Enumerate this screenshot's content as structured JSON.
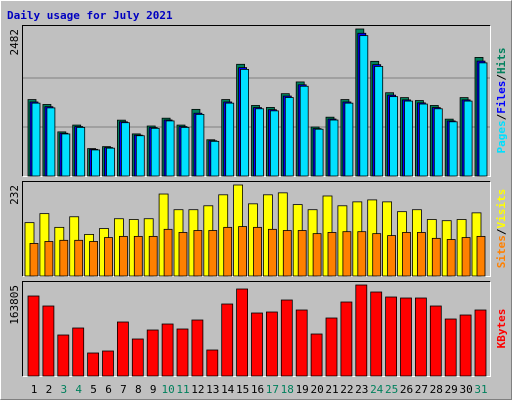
{
  "chart_data": [
    {
      "type": "bar",
      "title": "Daily usage for July 2021",
      "ylim": [
        0,
        2482
      ],
      "yticks": [
        2482
      ],
      "legend_separator": "/",
      "series": [
        {
          "name": "Hits",
          "color": "#00805c",
          "values": [
            1291,
            1208,
            745,
            860,
            463,
            496,
            943,
            711,
            844,
            976,
            860,
            1125,
            612,
            1291,
            1886,
            1191,
            1158,
            1390,
            1588,
            827,
            993,
            1291,
            2482,
            1936,
            1406,
            1324,
            1274,
            1191,
            960,
            1324,
            2002
          ]
        },
        {
          "name": "Files",
          "color": "#0000ff",
          "values": [
            1250,
            1170,
            722,
            835,
            450,
            480,
            915,
            690,
            818,
            946,
            835,
            1060,
            595,
            1250,
            1830,
            1155,
            1120,
            1350,
            1540,
            800,
            962,
            1250,
            2410,
            1880,
            1365,
            1285,
            1235,
            1155,
            930,
            1285,
            1940
          ]
        },
        {
          "name": "Pages",
          "color": "#00e0ff",
          "values": [
            1230,
            1150,
            710,
            820,
            440,
            470,
            900,
            680,
            805,
            930,
            820,
            1040,
            585,
            1230,
            1800,
            1135,
            1100,
            1325,
            1515,
            790,
            945,
            1230,
            2370,
            1850,
            1340,
            1265,
            1215,
            1135,
            915,
            1265,
            1910
          ]
        }
      ]
    },
    {
      "type": "bar",
      "ylim": [
        0,
        232
      ],
      "yticks": [
        232
      ],
      "legend_separator": "/",
      "series": [
        {
          "name": "Visits",
          "color": "#ffff00",
          "values": [
            136,
            159,
            124,
            151,
            106,
            121,
            146,
            144,
            146,
            209,
            169,
            169,
            179,
            207,
            232,
            184,
            207,
            212,
            182,
            169,
            204,
            179,
            189,
            194,
            189,
            164,
            169,
            144,
            141,
            144,
            161
          ]
        },
        {
          "name": "Sites",
          "color": "#ff8000",
          "values": [
            83,
            88,
            91,
            91,
            88,
            98,
            101,
            101,
            101,
            119,
            111,
            116,
            116,
            124,
            126,
            124,
            119,
            116,
            116,
            108,
            111,
            113,
            113,
            108,
            103,
            111,
            111,
            96,
            93,
            98,
            101
          ]
        }
      ]
    },
    {
      "type": "bar",
      "ylim": [
        0,
        163805
      ],
      "yticks": [
        163805
      ],
      "categories": [
        "1",
        "2",
        "3",
        "4",
        "5",
        "6",
        "7",
        "8",
        "9",
        "10",
        "11",
        "12",
        "13",
        "14",
        "15",
        "16",
        "17",
        "18",
        "19",
        "20",
        "21",
        "22",
        "23",
        "24",
        "25",
        "26",
        "27",
        "28",
        "29",
        "30",
        "31"
      ],
      "category_colors": [
        "#000",
        "#000",
        "#00805c",
        "#00805c",
        "#000",
        "#000",
        "#000",
        "#000",
        "#000",
        "#00805c",
        "#00805c",
        "#000",
        "#000",
        "#000",
        "#000",
        "#000",
        "#00805c",
        "#00805c",
        "#000",
        "#000",
        "#000",
        "#000",
        "#000",
        "#00805c",
        "#00805c",
        "#000",
        "#000",
        "#000",
        "#000",
        "#000",
        "#00805c"
      ],
      "series": [
        {
          "name": "KBytes",
          "color": "#ff0000",
          "values": [
            144000,
            126000,
            73800,
            86400,
            41400,
            45000,
            97200,
            66600,
            82800,
            93600,
            84600,
            100800,
            46800,
            129600,
            156600,
            113400,
            115200,
            136800,
            118800,
            75600,
            104400,
            133200,
            163805,
            151200,
            142200,
            140400,
            140400,
            126000,
            102600,
            109800,
            118800
          ]
        }
      ]
    }
  ]
}
